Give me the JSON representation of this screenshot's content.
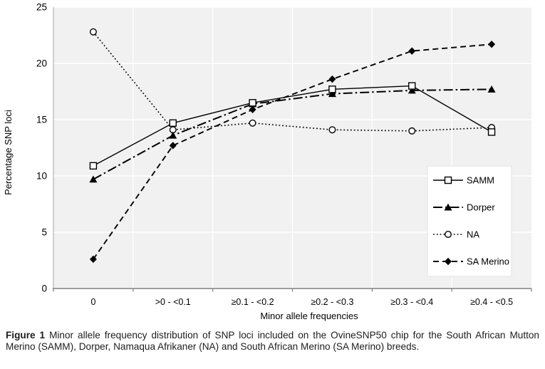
{
  "chart_data": {
    "type": "line",
    "title": "",
    "xlabel": "Minor allele frequencies",
    "ylabel": "Percentage SNP loci",
    "ylim": [
      0,
      25
    ],
    "yticks": [
      0,
      5,
      10,
      15,
      20,
      25
    ],
    "categories": [
      "0",
      ">0 - <0.1",
      "≥0.1 - <0.2",
      "≥0.2 - <0.3",
      "≥0.3 - <0.4",
      "≥0.4 - <0.5"
    ],
    "series": [
      {
        "name": "SAMM",
        "values": [
          10.9,
          14.7,
          16.5,
          17.7,
          18.0,
          13.9
        ],
        "line": "solid",
        "marker": "open-square"
      },
      {
        "name": "Dorper",
        "values": [
          9.7,
          13.6,
          16.4,
          17.3,
          17.6,
          17.7
        ],
        "line": "dash-dot",
        "marker": "filled-triangle"
      },
      {
        "name": "NA",
        "values": [
          22.8,
          14.1,
          14.7,
          14.1,
          14.0,
          14.3
        ],
        "line": "dotted",
        "marker": "open-circle"
      },
      {
        "name": "SA Merino",
        "values": [
          2.6,
          12.7,
          15.9,
          18.6,
          21.1,
          21.7
        ],
        "line": "dashed",
        "marker": "filled-diamond"
      }
    ],
    "legend_position": "inside-right",
    "grid": "white-on-gray, horizontal at yticks and vertical at category boundaries",
    "colors": {
      "plot_bg": "#f1f1f1",
      "grid": "#ffffff",
      "axis_x": "#808080",
      "axis_y": "#b3b3b3",
      "series": "#000000",
      "legend_bg": "#ffffff",
      "legend_border": "#e2e2e2"
    }
  },
  "caption": {
    "label": "Figure 1",
    "text": "Minor allele frequency distribution of SNP loci included on the OvineSNP50 chip for the South African Mutton Merino (SAMM), Dorper, Namaqua Afrikaner (NA) and South African Merino (SA Merino) breeds."
  }
}
